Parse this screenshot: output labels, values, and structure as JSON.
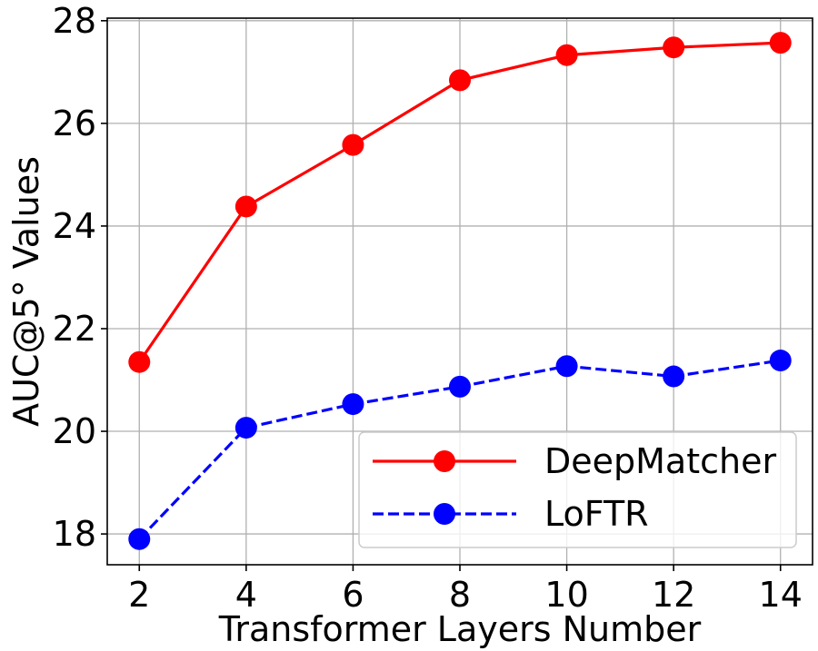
{
  "chart_data": {
    "type": "line",
    "title": "",
    "xlabel": "Transformer Layers Number",
    "ylabel": "AUC@5° Values",
    "x": [
      2,
      4,
      6,
      8,
      10,
      12,
      14
    ],
    "xlim": [
      1.4,
      14.6
    ],
    "ylim": [
      17.4,
      28.05
    ],
    "xticks": [
      2,
      4,
      6,
      8,
      10,
      12,
      14
    ],
    "yticks": [
      18,
      20,
      22,
      24,
      26,
      28
    ],
    "grid": true,
    "legend_position": "bottom-right",
    "series": [
      {
        "name": "DeepMatcher",
        "color": "#ff0000",
        "line_style": "solid",
        "marker": "circle",
        "values": [
          21.35,
          24.38,
          25.58,
          26.84,
          27.33,
          27.48,
          27.57
        ]
      },
      {
        "name": "LoFTR",
        "color": "#0000ff",
        "line_style": "dashed",
        "marker": "circle",
        "values": [
          17.9,
          20.07,
          20.53,
          20.87,
          21.27,
          21.07,
          21.38
        ]
      }
    ]
  }
}
